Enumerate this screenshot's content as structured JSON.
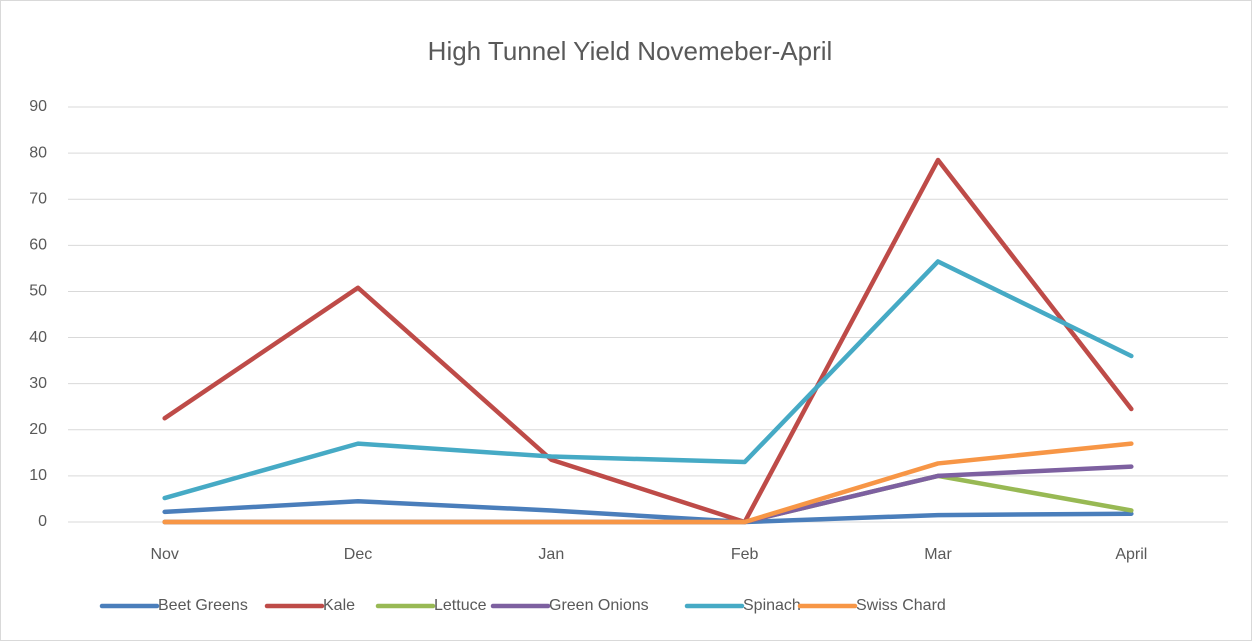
{
  "chart_data": {
    "type": "line",
    "title": "High Tunnel Yield Novemeber-April",
    "categories": [
      "Nov",
      "Dec",
      "Jan",
      "Feb",
      "Mar",
      "April"
    ],
    "series": [
      {
        "name": "Beet Greens",
        "color": "#4a7ebb",
        "values": [
          2.2,
          4.5,
          2.5,
          0,
          1.5,
          1.8
        ]
      },
      {
        "name": "Kale",
        "color": "#be4b48",
        "values": [
          22.5,
          50.8,
          13.5,
          0,
          78.5,
          24.5
        ]
      },
      {
        "name": "Lettuce",
        "color": "#98b954",
        "values": [
          0,
          0,
          0,
          0,
          10,
          2.5
        ]
      },
      {
        "name": "Green Onions",
        "color": "#7d60a0",
        "values": [
          0,
          0,
          0,
          0,
          10,
          12
        ]
      },
      {
        "name": "Spinach",
        "color": "#46aac5",
        "values": [
          5.2,
          17,
          14.2,
          13,
          56.5,
          36
        ]
      },
      {
        "name": "Swiss Chard",
        "color": "#f79646",
        "values": [
          0,
          0,
          0,
          0,
          12.7,
          17
        ]
      }
    ],
    "ylim": [
      0,
      90
    ],
    "yticks": [
      0,
      10,
      20,
      30,
      40,
      50,
      60,
      70,
      80,
      90
    ],
    "grid": true,
    "legend": "bottom"
  }
}
